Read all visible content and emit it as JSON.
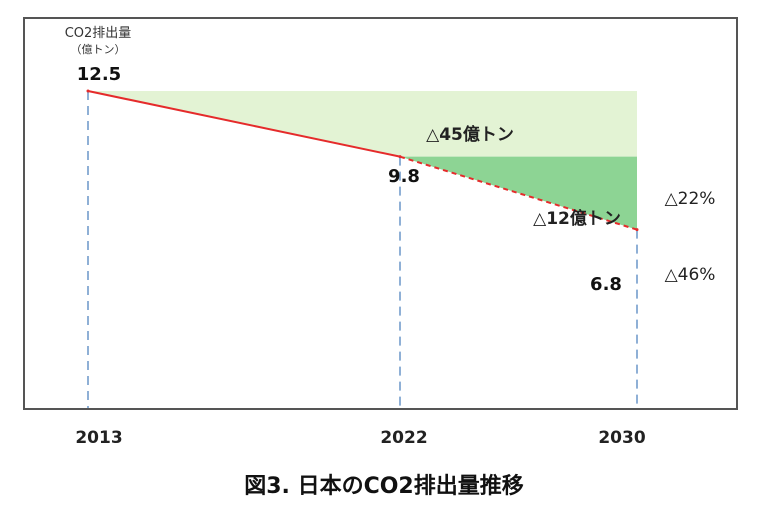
{
  "chart_data": {
    "type": "line",
    "title": "図3. 日本のCO2排出量推移",
    "ylabel_line1": "CO2排出量",
    "ylabel_line2": "（億トン）",
    "x": [
      2013,
      2022,
      2030
    ],
    "x_tick_labels": [
      "2013",
      "2022",
      "2030"
    ],
    "series": [
      {
        "values": [
          12.5,
          9.8,
          6.8
        ],
        "value_labels": [
          "12.5",
          "9.8",
          "6.8"
        ],
        "color": "#e52b2b",
        "projected_from": 2022
      }
    ],
    "bands": [
      {
        "label": "△45億トン",
        "color": "#e3f3d4"
      },
      {
        "label": "△12億トン",
        "color": "#8dd494"
      }
    ],
    "reductions": [
      "△22%",
      "△46%"
    ],
    "ylim": [
      0,
      12.5
    ],
    "grid": false
  }
}
